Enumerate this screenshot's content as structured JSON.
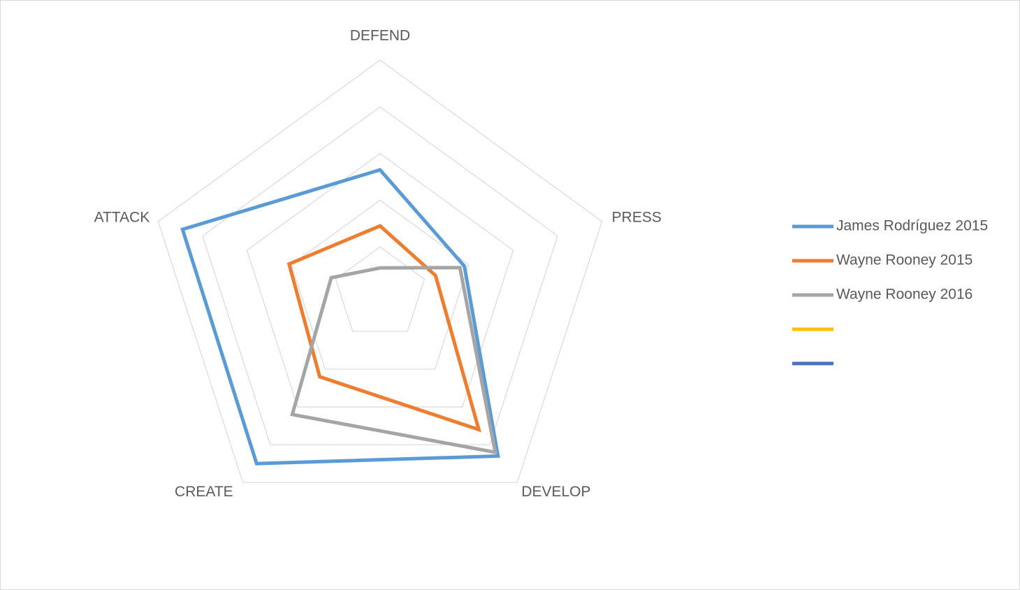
{
  "chart_data": {
    "type": "radar",
    "axes": [
      "DEFEND",
      "PRESS",
      "DEVELOP",
      "CREATE",
      "ATTACK"
    ],
    "rings": 5,
    "max": 5,
    "grid": true,
    "legend_position": "right",
    "series": [
      {
        "name": "James Rodríguez 2015",
        "color": "#5b9bd5",
        "values": [
          2.65,
          1.9,
          4.3,
          4.5,
          4.45
        ]
      },
      {
        "name": "Wayne Rooney 2015",
        "color": "#ed7d31",
        "values": [
          1.45,
          1.25,
          3.6,
          2.2,
          2.05
        ]
      },
      {
        "name": "Wayne Rooney 2016",
        "color": "#a5a5a5",
        "values": [
          0.55,
          1.8,
          4.2,
          3.2,
          1.1
        ]
      },
      {
        "name": "",
        "color": "#ffc000",
        "values": []
      },
      {
        "name": "",
        "color": "#4472c4",
        "values": []
      }
    ]
  }
}
